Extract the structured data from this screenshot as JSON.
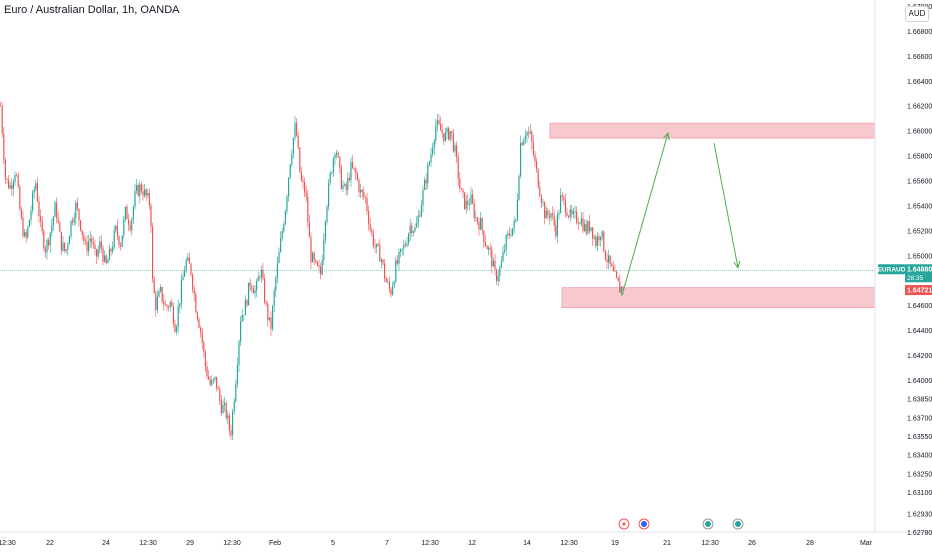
{
  "header": {
    "title": "Euro / Australian Dollar, 1h, OANDA",
    "currency": "AUD"
  },
  "colors": {
    "up": "#26a69a",
    "down": "#ef5350",
    "zone_fill": "#f8c8cf",
    "zone_stroke": "#f39aa5",
    "arrow": "#4caf50",
    "price_line": "#26a69a",
    "ask_label": "#ef5350"
  },
  "price_scale": [
    "1.67000",
    "1.66800",
    "1.66600",
    "1.66400",
    "1.66200",
    "1.66000",
    "1.65800",
    "1.65600",
    "1.65400",
    "1.65200",
    "1.65000",
    "1.64600",
    "1.64400",
    "1.64200",
    "1.64000",
    "1.63850",
    "1.63700",
    "1.63550",
    "1.63400",
    "1.63250",
    "1.63100",
    "1.62930",
    "1.62780"
  ],
  "time_axis": [
    "12:30",
    "22",
    "24",
    "12:30",
    "29",
    "12:30",
    "Feb",
    "5",
    "7",
    "12:30",
    "12",
    "14",
    "12:30",
    "19",
    "21",
    "12:30",
    "26",
    "28",
    "Mar"
  ],
  "markers": [
    "flash-icon",
    "earnings-icon",
    "dividend-icon",
    "dividend-icon"
  ],
  "last_price": {
    "symbol": "EURAUD",
    "price": "1.64880",
    "countdown": "28:35",
    "second_price": "1.64721"
  },
  "chart_data": {
    "type": "candlestick",
    "symbol": "EURAUD",
    "interval": "1h",
    "ylim": [
      1.6278,
      1.67
    ],
    "close_path": [
      [
        0,
        1.662
      ],
      [
        5,
        1.656
      ],
      [
        10,
        1.6555
      ],
      [
        15,
        1.657
      ],
      [
        20,
        1.653
      ],
      [
        25,
        1.651
      ],
      [
        30,
        1.6535
      ],
      [
        35,
        1.656
      ],
      [
        40,
        1.6522
      ],
      [
        45,
        1.6505
      ],
      [
        50,
        1.652
      ],
      [
        55,
        1.654
      ],
      [
        60,
        1.651
      ],
      [
        65,
        1.6502
      ],
      [
        70,
        1.6525
      ],
      [
        75,
        1.654
      ],
      [
        80,
        1.6525
      ],
      [
        85,
        1.6505
      ],
      [
        90,
        1.6515
      ],
      [
        95,
        1.6497
      ],
      [
        100,
        1.651
      ],
      [
        105,
        1.649
      ],
      [
        110,
        1.6503
      ],
      [
        115,
        1.652
      ],
      [
        120,
        1.651
      ],
      [
        125,
        1.6535
      ],
      [
        130,
        1.6525
      ],
      [
        135,
        1.655
      ],
      [
        140,
        1.6555
      ],
      [
        145,
        1.6548
      ],
      [
        150,
        1.654
      ],
      [
        152,
        1.6478
      ],
      [
        155,
        1.646
      ],
      [
        160,
        1.647
      ],
      [
        165,
        1.6458
      ],
      [
        170,
        1.6462
      ],
      [
        175,
        1.6442
      ],
      [
        180,
        1.647
      ],
      [
        185,
        1.6495
      ],
      [
        190,
        1.649
      ],
      [
        195,
        1.646
      ],
      [
        200,
        1.644
      ],
      [
        205,
        1.641
      ],
      [
        210,
        1.6395
      ],
      [
        215,
        1.64
      ],
      [
        220,
        1.638
      ],
      [
        225,
        1.6375
      ],
      [
        230,
        1.6356
      ],
      [
        235,
        1.64
      ],
      [
        240,
        1.645
      ],
      [
        245,
        1.646
      ],
      [
        250,
        1.648
      ],
      [
        255,
        1.647
      ],
      [
        260,
        1.649
      ],
      [
        265,
        1.646
      ],
      [
        270,
        1.644
      ],
      [
        275,
        1.648
      ],
      [
        280,
        1.651
      ],
      [
        285,
        1.654
      ],
      [
        290,
        1.658
      ],
      [
        295,
        1.6605
      ],
      [
        300,
        1.656
      ],
      [
        305,
        1.655
      ],
      [
        310,
        1.65
      ],
      [
        315,
        1.649
      ],
      [
        320,
        1.6485
      ],
      [
        325,
        1.6535
      ],
      [
        330,
        1.6565
      ],
      [
        335,
        1.659
      ],
      [
        340,
        1.656
      ],
      [
        345,
        1.655
      ],
      [
        350,
        1.657
      ],
      [
        355,
        1.6565
      ],
      [
        360,
        1.655
      ],
      [
        365,
        1.6545
      ],
      [
        370,
        1.652
      ],
      [
        375,
        1.6505
      ],
      [
        380,
        1.65
      ],
      [
        385,
        1.648
      ],
      [
        390,
        1.647
      ],
      [
        395,
        1.649
      ],
      [
        400,
        1.65
      ],
      [
        405,
        1.651
      ],
      [
        410,
        1.6525
      ],
      [
        415,
        1.652
      ],
      [
        420,
        1.654
      ],
      [
        425,
        1.656
      ],
      [
        430,
        1.658
      ],
      [
        435,
        1.6605
      ],
      [
        440,
        1.66
      ],
      [
        445,
        1.6595
      ],
      [
        450,
        1.66
      ],
      [
        455,
        1.658
      ],
      [
        460,
        1.655
      ],
      [
        465,
        1.654
      ],
      [
        470,
        1.6545
      ],
      [
        475,
        1.653
      ],
      [
        480,
        1.6525
      ],
      [
        485,
        1.651
      ],
      [
        490,
        1.65
      ],
      [
        495,
        1.6482
      ],
      [
        500,
        1.649
      ],
      [
        505,
        1.651
      ],
      [
        510,
        1.652
      ],
      [
        515,
        1.6525
      ],
      [
        520,
        1.659
      ],
      [
        525,
        1.66
      ],
      [
        530,
        1.6595
      ],
      [
        535,
        1.657
      ],
      [
        540,
        1.655
      ],
      [
        545,
        1.653
      ],
      [
        550,
        1.6535
      ],
      [
        555,
        1.652
      ],
      [
        560,
        1.6545
      ],
      [
        565,
        1.654
      ],
      [
        570,
        1.653
      ],
      [
        575,
        1.653
      ],
      [
        580,
        1.653
      ],
      [
        585,
        1.652
      ],
      [
        590,
        1.6525
      ],
      [
        595,
        1.651
      ],
      [
        600,
        1.652
      ],
      [
        605,
        1.65
      ],
      [
        610,
        1.649
      ],
      [
        615,
        1.648
      ],
      [
        620,
        1.6472
      ],
      [
        625,
        1.6482
      ]
    ],
    "zones": [
      {
        "name": "resistance-zone",
        "x0": 550,
        "x1": 875,
        "y_top": 1.6606,
        "y_bottom": 1.6594
      },
      {
        "name": "support-zone",
        "x0": 562,
        "x1": 875,
        "y_top": 1.6474,
        "y_bottom": 1.6458
      }
    ],
    "arrows": [
      {
        "from": [
          622,
          1.6468
        ],
        "to": [
          668,
          1.6598
        ]
      },
      {
        "from": [
          714,
          1.659
        ],
        "to": [
          738,
          1.649
        ]
      }
    ],
    "current_price": 1.6488
  }
}
